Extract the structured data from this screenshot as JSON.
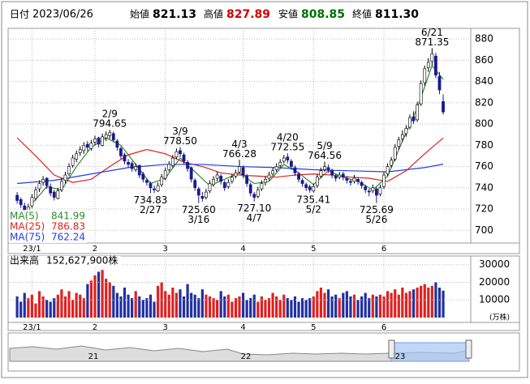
{
  "chart_data": {
    "type": "candlestick",
    "header": {
      "date_label": "日付",
      "date": "2023/06/26",
      "fields": [
        {
          "label": "始値",
          "value": 821.13,
          "color": "#000000"
        },
        {
          "label": "高値",
          "value": 827.89,
          "color": "#d00000"
        },
        {
          "label": "安値",
          "value": 808.85,
          "color": "#007000"
        },
        {
          "label": "終値",
          "value": {
            "value": 811.3,
            "label": "811.30"
          },
          "color": "#000000"
        }
      ]
    },
    "xlim": [
      -2,
      122
    ],
    "xticks": [
      {
        "value": 4,
        "label": "23/1"
      },
      {
        "value": 21,
        "label": "2"
      },
      {
        "value": 40,
        "label": "3"
      },
      {
        "value": 61,
        "label": "4"
      },
      {
        "value": 80,
        "label": "5"
      },
      {
        "value": 99,
        "label": "6"
      }
    ],
    "ylim": [
      688,
      890
    ],
    "yticks": [
      700,
      720,
      740,
      760,
      780,
      800,
      820,
      840,
      860,
      880
    ],
    "grid": true,
    "up_color": "#ffffff",
    "down_color": "#1a1a8c",
    "ohlc": [
      [
        733,
        736,
        725,
        728
      ],
      [
        729,
        731,
        721,
        724
      ],
      [
        723,
        726,
        715,
        718
      ],
      [
        717,
        725,
        716,
        722
      ],
      [
        723,
        734,
        721,
        731
      ],
      [
        730,
        741,
        728,
        738
      ],
      [
        739,
        747,
        736,
        744
      ],
      [
        745,
        751,
        742,
        748
      ],
      [
        749,
        750,
        739,
        742
      ],
      [
        741,
        744,
        732,
        735
      ],
      [
        736,
        738,
        728,
        731
      ],
      [
        730,
        740,
        729,
        737
      ],
      [
        738,
        749,
        736,
        746
      ],
      [
        747,
        755,
        744,
        752
      ],
      [
        753,
        763,
        751,
        760
      ],
      [
        761,
        771,
        759,
        768
      ],
      [
        767,
        775,
        764,
        772
      ],
      [
        773,
        779,
        770,
        776
      ],
      [
        775,
        783,
        772,
        780
      ],
      [
        781,
        784,
        774,
        778
      ],
      [
        777,
        785,
        775,
        782
      ],
      [
        783,
        789,
        780,
        786
      ],
      [
        787,
        788,
        778,
        781
      ],
      [
        780,
        791,
        779,
        788
      ],
      [
        787,
        793,
        784,
        790
      ],
      [
        789,
        794.65,
        786,
        792
      ],
      [
        791,
        793,
        783,
        785
      ],
      [
        784,
        786,
        775,
        778
      ],
      [
        777,
        779,
        767,
        770
      ],
      [
        771,
        773,
        762,
        765
      ],
      [
        764,
        767,
        759,
        762
      ],
      [
        763,
        765,
        755,
        758
      ],
      [
        757,
        763,
        755,
        760
      ],
      [
        761,
        762,
        749,
        752
      ],
      [
        753,
        755,
        745,
        748
      ],
      [
        747,
        749,
        742,
        745
      ],
      [
        744,
        746,
        734.83,
        740
      ],
      [
        739,
        742,
        735,
        738
      ],
      [
        737,
        745,
        736,
        742
      ],
      [
        743,
        753,
        741,
        750
      ],
      [
        749,
        759,
        747,
        756
      ],
      [
        757,
        765,
        755,
        762
      ],
      [
        761,
        771,
        759,
        768
      ],
      [
        769,
        777,
        767,
        774
      ],
      [
        775,
        778.5,
        769,
        772
      ],
      [
        771,
        773,
        762,
        765
      ],
      [
        764,
        766,
        755,
        758
      ],
      [
        759,
        760,
        745,
        748
      ],
      [
        747,
        749,
        737,
        740
      ],
      [
        739,
        741,
        725.6,
        733
      ],
      [
        732,
        736,
        727,
        730
      ],
      [
        731,
        739,
        729,
        736
      ],
      [
        737,
        747,
        735,
        744
      ],
      [
        743,
        751,
        741,
        748
      ],
      [
        749,
        755,
        746,
        752
      ],
      [
        751,
        753,
        743,
        746
      ],
      [
        745,
        747,
        737,
        740
      ],
      [
        741,
        748,
        739,
        745
      ],
      [
        746,
        753,
        744,
        750
      ],
      [
        751,
        757,
        749,
        754
      ],
      [
        755,
        766.28,
        753,
        760
      ],
      [
        759,
        761,
        749,
        752
      ],
      [
        751,
        753,
        741,
        744
      ],
      [
        743,
        745,
        732,
        735
      ],
      [
        734,
        736,
        727.1,
        731
      ],
      [
        732,
        741,
        730,
        738
      ],
      [
        739,
        747,
        737,
        744
      ],
      [
        745,
        751,
        742,
        748
      ],
      [
        749,
        755,
        747,
        752
      ],
      [
        753,
        759,
        751,
        756
      ],
      [
        757,
        763,
        755,
        760
      ],
      [
        761,
        767,
        759,
        764
      ],
      [
        765,
        771,
        763,
        768
      ],
      [
        769,
        772.55,
        763,
        766
      ],
      [
        765,
        767,
        757,
        760
      ],
      [
        759,
        761,
        751,
        754
      ],
      [
        753,
        755,
        745,
        748
      ],
      [
        747,
        749,
        741,
        744
      ],
      [
        743,
        745,
        737,
        740
      ],
      [
        741,
        743,
        735.5,
        738
      ],
      [
        737,
        744,
        735.41,
        741
      ],
      [
        742,
        753,
        740,
        750
      ],
      [
        751,
        759,
        749,
        756
      ],
      [
        757,
        764.56,
        755,
        760
      ],
      [
        759,
        762,
        754,
        757
      ],
      [
        756,
        758,
        749,
        752
      ],
      [
        751,
        753,
        746,
        749
      ],
      [
        750,
        755,
        748,
        752
      ],
      [
        753,
        755,
        747,
        750
      ],
      [
        749,
        751,
        744,
        747
      ],
      [
        746,
        748,
        742,
        745
      ],
      [
        746,
        752,
        744,
        749
      ],
      [
        748,
        750,
        743,
        746
      ],
      [
        745,
        747,
        739,
        742
      ],
      [
        741,
        743,
        735,
        738
      ],
      [
        737,
        739,
        732,
        736
      ],
      [
        737,
        743,
        735,
        740
      ],
      [
        739,
        741,
        725.69,
        733
      ],
      [
        734,
        743,
        732,
        740
      ],
      [
        741,
        755,
        739,
        752
      ],
      [
        753,
        763,
        751,
        760
      ],
      [
        761,
        769,
        759,
        766
      ],
      [
        767,
        781,
        765,
        778
      ],
      [
        779,
        788,
        776,
        785
      ],
      [
        786,
        794,
        783,
        790
      ],
      [
        791,
        799,
        788,
        796
      ],
      [
        797,
        809,
        795,
        806
      ],
      [
        807,
        812,
        800,
        803
      ],
      [
        804,
        821,
        802,
        818
      ],
      [
        819,
        841,
        817,
        838
      ],
      [
        839,
        855,
        836,
        852
      ],
      [
        853,
        862,
        849,
        858
      ],
      [
        859,
        871.35,
        855,
        866
      ],
      [
        864,
        867,
        843,
        846
      ],
      [
        845,
        849,
        828,
        832
      ],
      [
        821.13,
        827.89,
        808.85,
        811.3
      ]
    ],
    "ma": [
      {
        "name": "MA(5)",
        "color": "#2e8b2e",
        "last": 841.99,
        "x": [
          4,
          8,
          12,
          16,
          20,
          24,
          28,
          32,
          36,
          40,
          44,
          48,
          52,
          56,
          60,
          64,
          68,
          72,
          76,
          80,
          84,
          88,
          92,
          96,
          100,
          104,
          108,
          112,
          115
        ],
        "values": [
          725,
          741,
          738,
          760,
          778,
          787,
          780,
          762,
          744,
          749,
          768,
          755,
          742,
          748,
          754,
          744,
          746,
          762,
          754,
          743,
          756,
          750,
          746,
          738,
          751,
          784,
          815,
          855,
          841.99
        ]
      },
      {
        "name": "MA(25)",
        "color": "#e02020",
        "last": 786.83,
        "x": [
          0,
          5,
          10,
          15,
          20,
          25,
          30,
          35,
          40,
          45,
          50,
          55,
          60,
          65,
          70,
          75,
          80,
          85,
          90,
          95,
          100,
          105,
          110,
          115
        ],
        "values": [
          787,
          770,
          752,
          745,
          748,
          760,
          771,
          776,
          772,
          764,
          760,
          754,
          752,
          751,
          750,
          752,
          753,
          752,
          750,
          749,
          746,
          756,
          772,
          786.83
        ]
      },
      {
        "name": "MA(75)",
        "color": "#2040e0",
        "last": 762.24,
        "x": [
          0,
          10,
          20,
          30,
          40,
          50,
          60,
          70,
          80,
          90,
          100,
          110,
          115
        ],
        "values": [
          744,
          747,
          753,
          759,
          762,
          762,
          760,
          759,
          757,
          756,
          755,
          759,
          762.24
        ]
      }
    ],
    "annotations": [
      {
        "date": "2/9",
        "x": 25,
        "value": 794.65,
        "pos": "top"
      },
      {
        "date": "3/9",
        "x": 44,
        "value": {
          "value": 778.5,
          "label": "778.50"
        },
        "pos": "top"
      },
      {
        "date": "4/3",
        "x": 60,
        "value": 766.28,
        "pos": "top"
      },
      {
        "date": "4/20",
        "x": 73,
        "value": 772.55,
        "pos": "top"
      },
      {
        "date": "5/9",
        "x": 83,
        "value": 764.56,
        "pos": "top"
      },
      {
        "date": "6/21",
        "x": 112,
        "value": 871.35,
        "pos": "top"
      },
      {
        "date": "2/27",
        "x": 36,
        "value": 734.83,
        "pos": "bottom"
      },
      {
        "date": "3/16",
        "x": 49,
        "value": {
          "value": 725.6,
          "label": "725.60"
        },
        "pos": "bottom"
      },
      {
        "date": "4/7",
        "x": 64,
        "value": {
          "value": 727.1,
          "label": "727.10"
        },
        "pos": "bottom"
      },
      {
        "date": "5/2",
        "x": 80,
        "value": 735.41,
        "pos": "bottom"
      },
      {
        "date": "5/26",
        "x": 97,
        "value": 725.69,
        "pos": "bottom"
      }
    ],
    "volume": {
      "label": "出来高",
      "total_label": "152,627,900株",
      "unit": "(万株)",
      "up_color": "#e02020",
      "down_color": "#2030a0",
      "ylim": [
        0,
        34000
      ],
      "yticks": [
        10000,
        20000,
        30000
      ],
      "values": [
        12000,
        9000,
        14000,
        11000,
        13000,
        8000,
        15000,
        12000,
        10000,
        9000,
        11000,
        13000,
        16000,
        12000,
        15000,
        10000,
        14000,
        13000,
        11000,
        19000,
        21000,
        24000,
        26000,
        27000,
        22000,
        20000,
        18000,
        14000,
        12000,
        17000,
        13000,
        11000,
        15000,
        12000,
        10000,
        11000,
        13000,
        9000,
        18000,
        20000,
        15000,
        13000,
        17000,
        14000,
        16000,
        12000,
        19000,
        14000,
        13000,
        11000,
        16000,
        13000,
        12000,
        11000,
        10000,
        15000,
        12000,
        13000,
        9000,
        11000,
        12000,
        14000,
        10000,
        11000,
        13000,
        9000,
        12000,
        10000,
        11000,
        14000,
        12000,
        10000,
        13000,
        11000,
        10000,
        12000,
        9000,
        11000,
        10000,
        11000,
        12000,
        15000,
        17000,
        14000,
        16000,
        12000,
        13000,
        11000,
        14000,
        15000,
        12000,
        13000,
        10000,
        12000,
        14000,
        11000,
        13000,
        12000,
        13000,
        12000,
        15000,
        14000,
        16000,
        13000,
        17000,
        14000,
        15000,
        16000,
        17000,
        18000,
        19000,
        17000,
        18000,
        20000,
        17000,
        15262.79
      ]
    },
    "navigator": {
      "labels": [
        "21",
        "22",
        "23"
      ]
    }
  }
}
